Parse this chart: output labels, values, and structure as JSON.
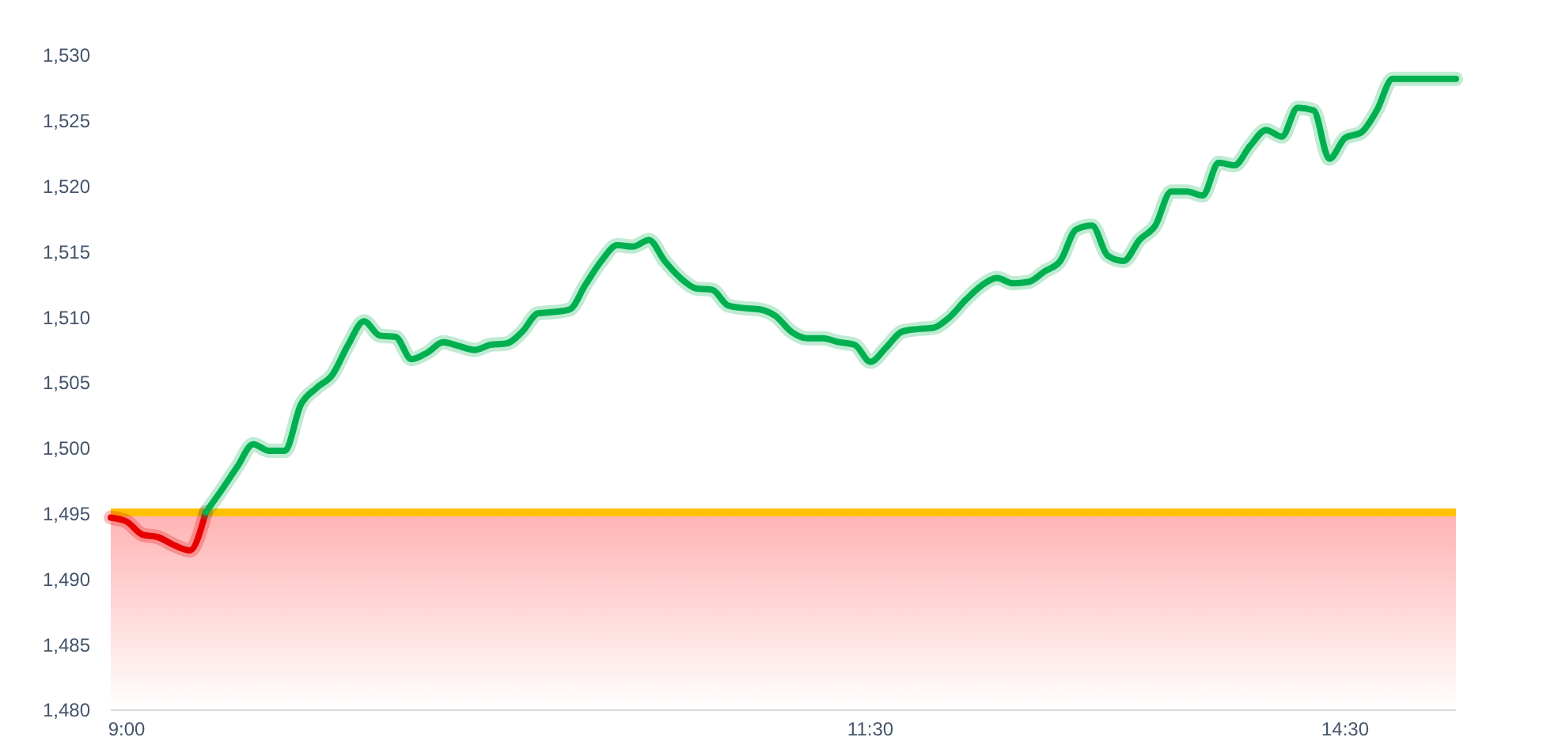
{
  "chart_data": {
    "type": "line",
    "categories": [
      null,
      "9:00",
      null,
      null,
      null,
      null,
      null,
      null,
      null,
      null,
      null,
      null,
      null,
      null,
      null,
      null,
      null,
      null,
      null,
      null,
      null,
      null,
      null,
      null,
      null,
      null,
      null,
      null,
      null,
      null,
      null,
      null,
      null,
      null,
      null,
      null,
      null,
      null,
      null,
      null,
      null,
      null,
      null,
      null,
      null,
      null,
      null,
      null,
      "11:30",
      null,
      null,
      null,
      null,
      null,
      null,
      null,
      null,
      null,
      null,
      null,
      null,
      null,
      null,
      null,
      null,
      null,
      null,
      null,
      null,
      null,
      null,
      null,
      null,
      null,
      null,
      null,
      null,
      null,
      "14:30",
      null,
      null,
      null,
      null,
      null,
      null,
      null
    ],
    "series": [
      {
        "color": "#e60000",
        "values": [
          1494.7,
          1494.4,
          1493.4,
          1493.2,
          1492.6,
          1492.2,
          1495.1,
          null,
          null,
          null,
          null,
          null,
          null,
          null,
          null,
          null,
          null,
          null,
          null,
          null,
          null,
          null,
          null,
          null,
          null,
          null,
          null,
          null,
          null,
          null,
          null,
          null,
          null,
          null,
          null,
          null,
          null,
          null,
          null,
          null,
          null,
          null,
          null,
          null,
          null,
          null,
          null,
          null,
          null,
          null,
          null,
          null,
          null,
          null,
          null,
          null,
          null,
          null,
          null,
          null,
          null,
          null,
          null,
          null,
          null,
          null,
          null,
          null,
          null,
          null,
          null,
          null,
          null,
          null,
          null,
          null,
          null,
          null,
          null,
          null,
          null,
          null,
          null,
          null,
          null,
          null
        ]
      },
      {
        "color": "#00b050",
        "values": [
          null,
          null,
          null,
          null,
          null,
          null,
          1495.1,
          1496.8,
          1498.6,
          1500.3,
          1499.8,
          1499.8,
          1503.3,
          1504.6,
          1505.6,
          1507.9,
          1509.7,
          1508.6,
          1508.5,
          1506.8,
          1507.3,
          1508.1,
          1507.8,
          1507.5,
          1507.9,
          1508.0,
          1508.9,
          1510.3,
          1510.4,
          1510.6,
          1512.5,
          1514.3,
          1515.5,
          1515.4,
          1515.9,
          1514.3,
          1513.0,
          1512.2,
          1512.1,
          1510.9,
          1510.7,
          1510.6,
          1510.1,
          1508.9,
          1508.4,
          1508.4,
          1508.1,
          1507.9,
          1506.6,
          1507.7,
          1508.9,
          1509.1,
          1509.2,
          1510.0,
          1511.3,
          1512.4,
          1513.0,
          1512.6,
          1512.7,
          1513.5,
          1514.3,
          1516.7,
          1517.0,
          1514.7,
          1514.3,
          1515.9,
          1517.0,
          1519.6,
          1519.6,
          1519.3,
          1521.8,
          1521.6,
          1523.1,
          1524.3,
          1523.8,
          1526.0,
          1525.8,
          1522.1,
          1523.7,
          1524.1,
          1525.8,
          1528.2,
          1528.2,
          1528.2,
          1528.2,
          1528.2
        ]
      }
    ],
    "ylim": [
      1480,
      1530
    ],
    "yticks": [
      {
        "value": 1480,
        "label": "1,480"
      },
      {
        "value": 1485,
        "label": "1,485"
      },
      {
        "value": 1490,
        "label": "1,490"
      },
      {
        "value": 1495,
        "label": "1,495"
      },
      {
        "value": 1500,
        "label": "1,500"
      },
      {
        "value": 1505,
        "label": "1,505"
      },
      {
        "value": 1510,
        "label": "1,510"
      },
      {
        "value": 1515,
        "label": "1,515"
      },
      {
        "value": 1520,
        "label": "1,520"
      },
      {
        "value": 1525,
        "label": "1,525"
      },
      {
        "value": 1530,
        "label": "1,530"
      }
    ],
    "ref_lines": [
      {
        "axis": "y",
        "value": 1495.1,
        "color": "#ffc000"
      }
    ],
    "bands": [
      {
        "axis": "y",
        "from": 1480,
        "to": 1495.1,
        "color": "#ff0000"
      }
    ],
    "grid": false,
    "marker": "none",
    "line_style": "solid"
  }
}
